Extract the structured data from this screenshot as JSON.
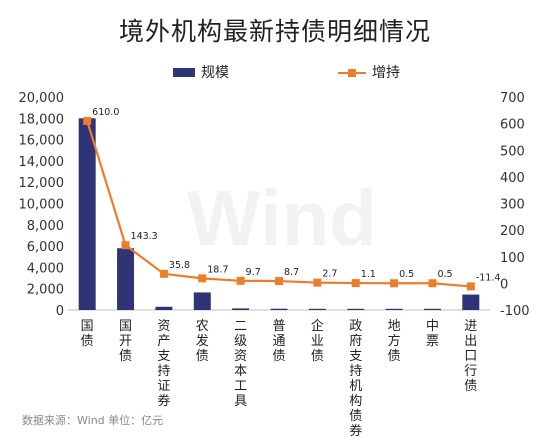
{
  "chart_data": {
    "type": "bar+line",
    "title": "境外机构最新持债明细情况",
    "categories": [
      "国债",
      "国开债",
      "资产支持证券",
      "农发债",
      "二级资本工具",
      "普通债",
      "企业债",
      "政府支持机构债券",
      "地方债",
      "中票",
      "进出口行债"
    ],
    "series": [
      {
        "name": "规模",
        "type": "bar",
        "axis": "left",
        "color": "#2e3475",
        "values": [
          18000,
          5800,
          300,
          1650,
          150,
          120,
          40,
          30,
          20,
          40,
          1450
        ]
      },
      {
        "name": "增持",
        "type": "line",
        "axis": "right",
        "color": "#ee7d2b",
        "values": [
          610.0,
          143.3,
          35.8,
          18.7,
          9.7,
          8.7,
          2.7,
          1.1,
          0.5,
          0.5,
          -11.4
        ],
        "labels": [
          "610.0",
          "143.3",
          "35.8",
          "18.7",
          "9.7",
          "8.7",
          "2.7",
          "1.1",
          "0.5",
          "0.5",
          "-11.4"
        ]
      }
    ],
    "y_left": {
      "ylim": [
        0,
        20000
      ],
      "ticks": [
        0,
        2000,
        4000,
        6000,
        8000,
        10000,
        12000,
        14000,
        16000,
        18000,
        20000
      ],
      "tick_labels": [
        "0",
        "2,000",
        "4,000",
        "6,000",
        "8,000",
        "10,000",
        "12,000",
        "14,000",
        "16,000",
        "18,000",
        "20,000"
      ]
    },
    "y_right": {
      "ylim": [
        -100,
        700
      ],
      "ticks": [
        -100,
        0,
        100,
        200,
        300,
        400,
        500,
        600,
        700
      ],
      "tick_labels": [
        "-100",
        "0",
        "100",
        "200",
        "300",
        "400",
        "500",
        "600",
        "700"
      ]
    },
    "grid": false,
    "legend_position": "top-center",
    "watermark": "Wind"
  },
  "source_note": "数据来源：Wind    单位：亿元"
}
